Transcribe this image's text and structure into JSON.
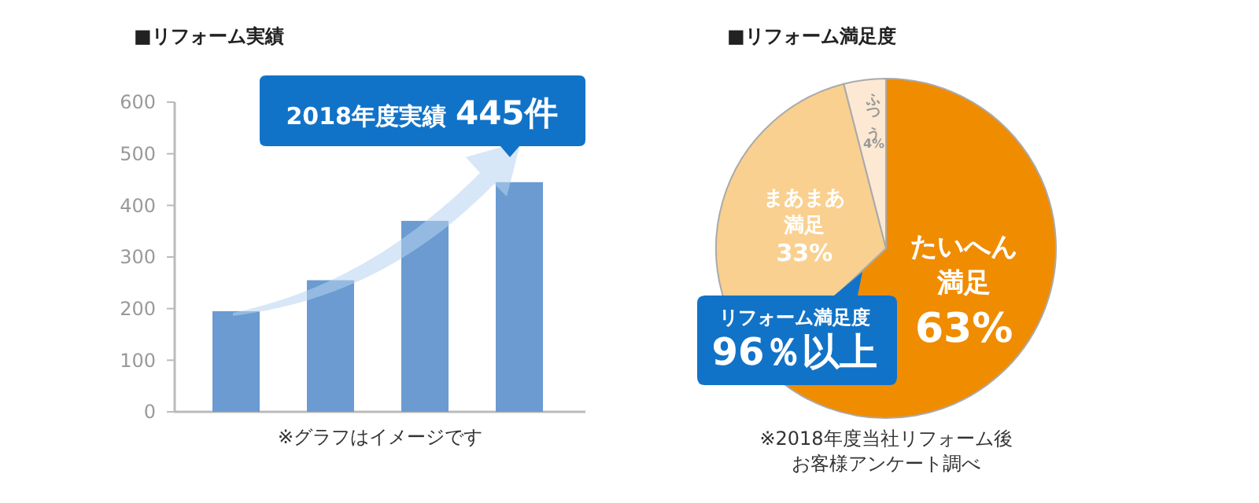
{
  "chart_data": [
    {
      "type": "bar",
      "title": "■リフォーム実績",
      "categories": [
        null,
        null,
        null,
        null
      ],
      "values": [
        195,
        255,
        370,
        445
      ],
      "color": "#6b9bd1",
      "ylim": [
        0,
        600
      ],
      "yticks": [
        0,
        100,
        200,
        300,
        400,
        500,
        600
      ],
      "grid": false,
      "annotations": [
        "2018年度実績 445件",
        "※グラフはイメージです"
      ]
    },
    {
      "type": "pie",
      "title": "■リフォーム満足度",
      "categories": [
        "たいへん満足",
        "まあまあ満足",
        "ふつう"
      ],
      "values": [
        63,
        33,
        4
      ],
      "colors": [
        "#f08c00",
        "#f9d08f",
        "#fde9d3"
      ],
      "value_labels": [
        "63%",
        "33%",
        "4%"
      ],
      "annotations": [
        "リフォーム満足度96％以上",
        "※2018年度当社リフォーム後お客様アンケート調べ"
      ]
    }
  ]
}
